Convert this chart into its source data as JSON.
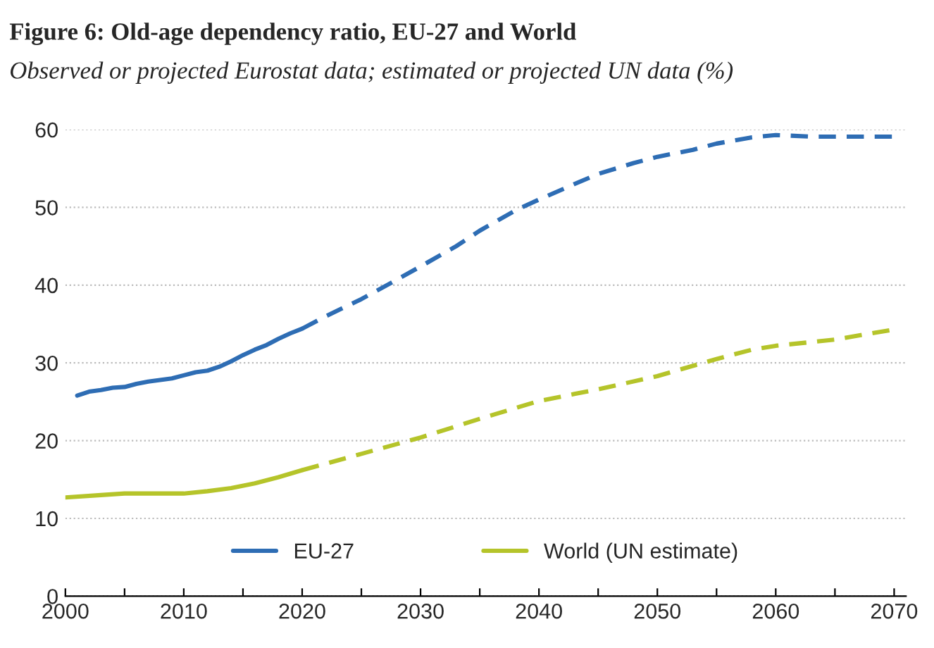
{
  "chart_data": {
    "type": "line",
    "title": "Figure 6: Old-age dependency ratio, EU-27 and World",
    "subtitle": "Observed or projected Eurostat data; estimated or projected UN data (%)",
    "xlim": [
      2000,
      2071
    ],
    "xticks": [
      2000,
      {
        "value": 2005,
        "label": null
      },
      2010,
      {
        "value": 2015,
        "label": null
      },
      2020,
      {
        "value": 2025,
        "label": null
      },
      2030,
      {
        "value": 2035,
        "label": null
      },
      2040,
      {
        "value": 2045,
        "label": null
      },
      2050,
      {
        "value": 2055,
        "label": null
      },
      2060,
      {
        "value": 2065,
        "label": null
      },
      2070
    ],
    "ylim": [
      0,
      60
    ],
    "yticks": [
      0,
      10,
      20,
      30,
      40,
      50,
      60
    ],
    "grid": "y",
    "legend": "bottom",
    "marker": "none",
    "series": [
      {
        "name": "EU-27",
        "color": "#2e6db4",
        "line_style": "solid",
        "x": [
          2001,
          2002,
          2003,
          2004,
          2005,
          2006,
          2007,
          2008,
          2009,
          2010,
          2011,
          2012,
          2013,
          2014,
          2015,
          2016,
          2017,
          2018,
          2019,
          2020
        ],
        "values": [
          25.8,
          26.3,
          26.5,
          26.8,
          26.9,
          27.3,
          27.6,
          27.8,
          28.0,
          28.4,
          28.8,
          29.0,
          29.5,
          30.2,
          31.0,
          31.7,
          32.3,
          33.1,
          33.8,
          34.4
        ]
      },
      {
        "color": "#2e6db4",
        "line_style": "dashed",
        "x": [
          2020,
          2022,
          2025,
          2028,
          2030,
          2033,
          2035,
          2038,
          2040,
          2043,
          2045,
          2048,
          2050,
          2053,
          2055,
          2058,
          2060,
          2063,
          2066,
          2070
        ],
        "values": [
          34.4,
          36.0,
          38.2,
          40.7,
          42.4,
          45.0,
          47.0,
          49.6,
          51.0,
          53.0,
          54.3,
          55.7,
          56.5,
          57.4,
          58.2,
          59.0,
          59.3,
          59.1,
          59.1,
          59.1
        ]
      },
      {
        "name": "World (UN estimate)",
        "color": "#b5c42a",
        "line_style": "solid",
        "x": [
          2000,
          2003,
          2005,
          2008,
          2010,
          2012,
          2014,
          2016,
          2018,
          2020
        ],
        "values": [
          12.7,
          13.0,
          13.2,
          13.2,
          13.2,
          13.5,
          13.9,
          14.5,
          15.3,
          16.2
        ]
      },
      {
        "color": "#b5c42a",
        "line_style": "dashed",
        "x": [
          2020,
          2025,
          2030,
          2035,
          2040,
          2043,
          2045,
          2050,
          2055,
          2058,
          2060,
          2065,
          2070
        ],
        "values": [
          16.2,
          18.3,
          20.4,
          22.8,
          25.1,
          26.0,
          26.6,
          28.3,
          30.5,
          31.7,
          32.2,
          33.0,
          34.3
        ]
      }
    ]
  }
}
